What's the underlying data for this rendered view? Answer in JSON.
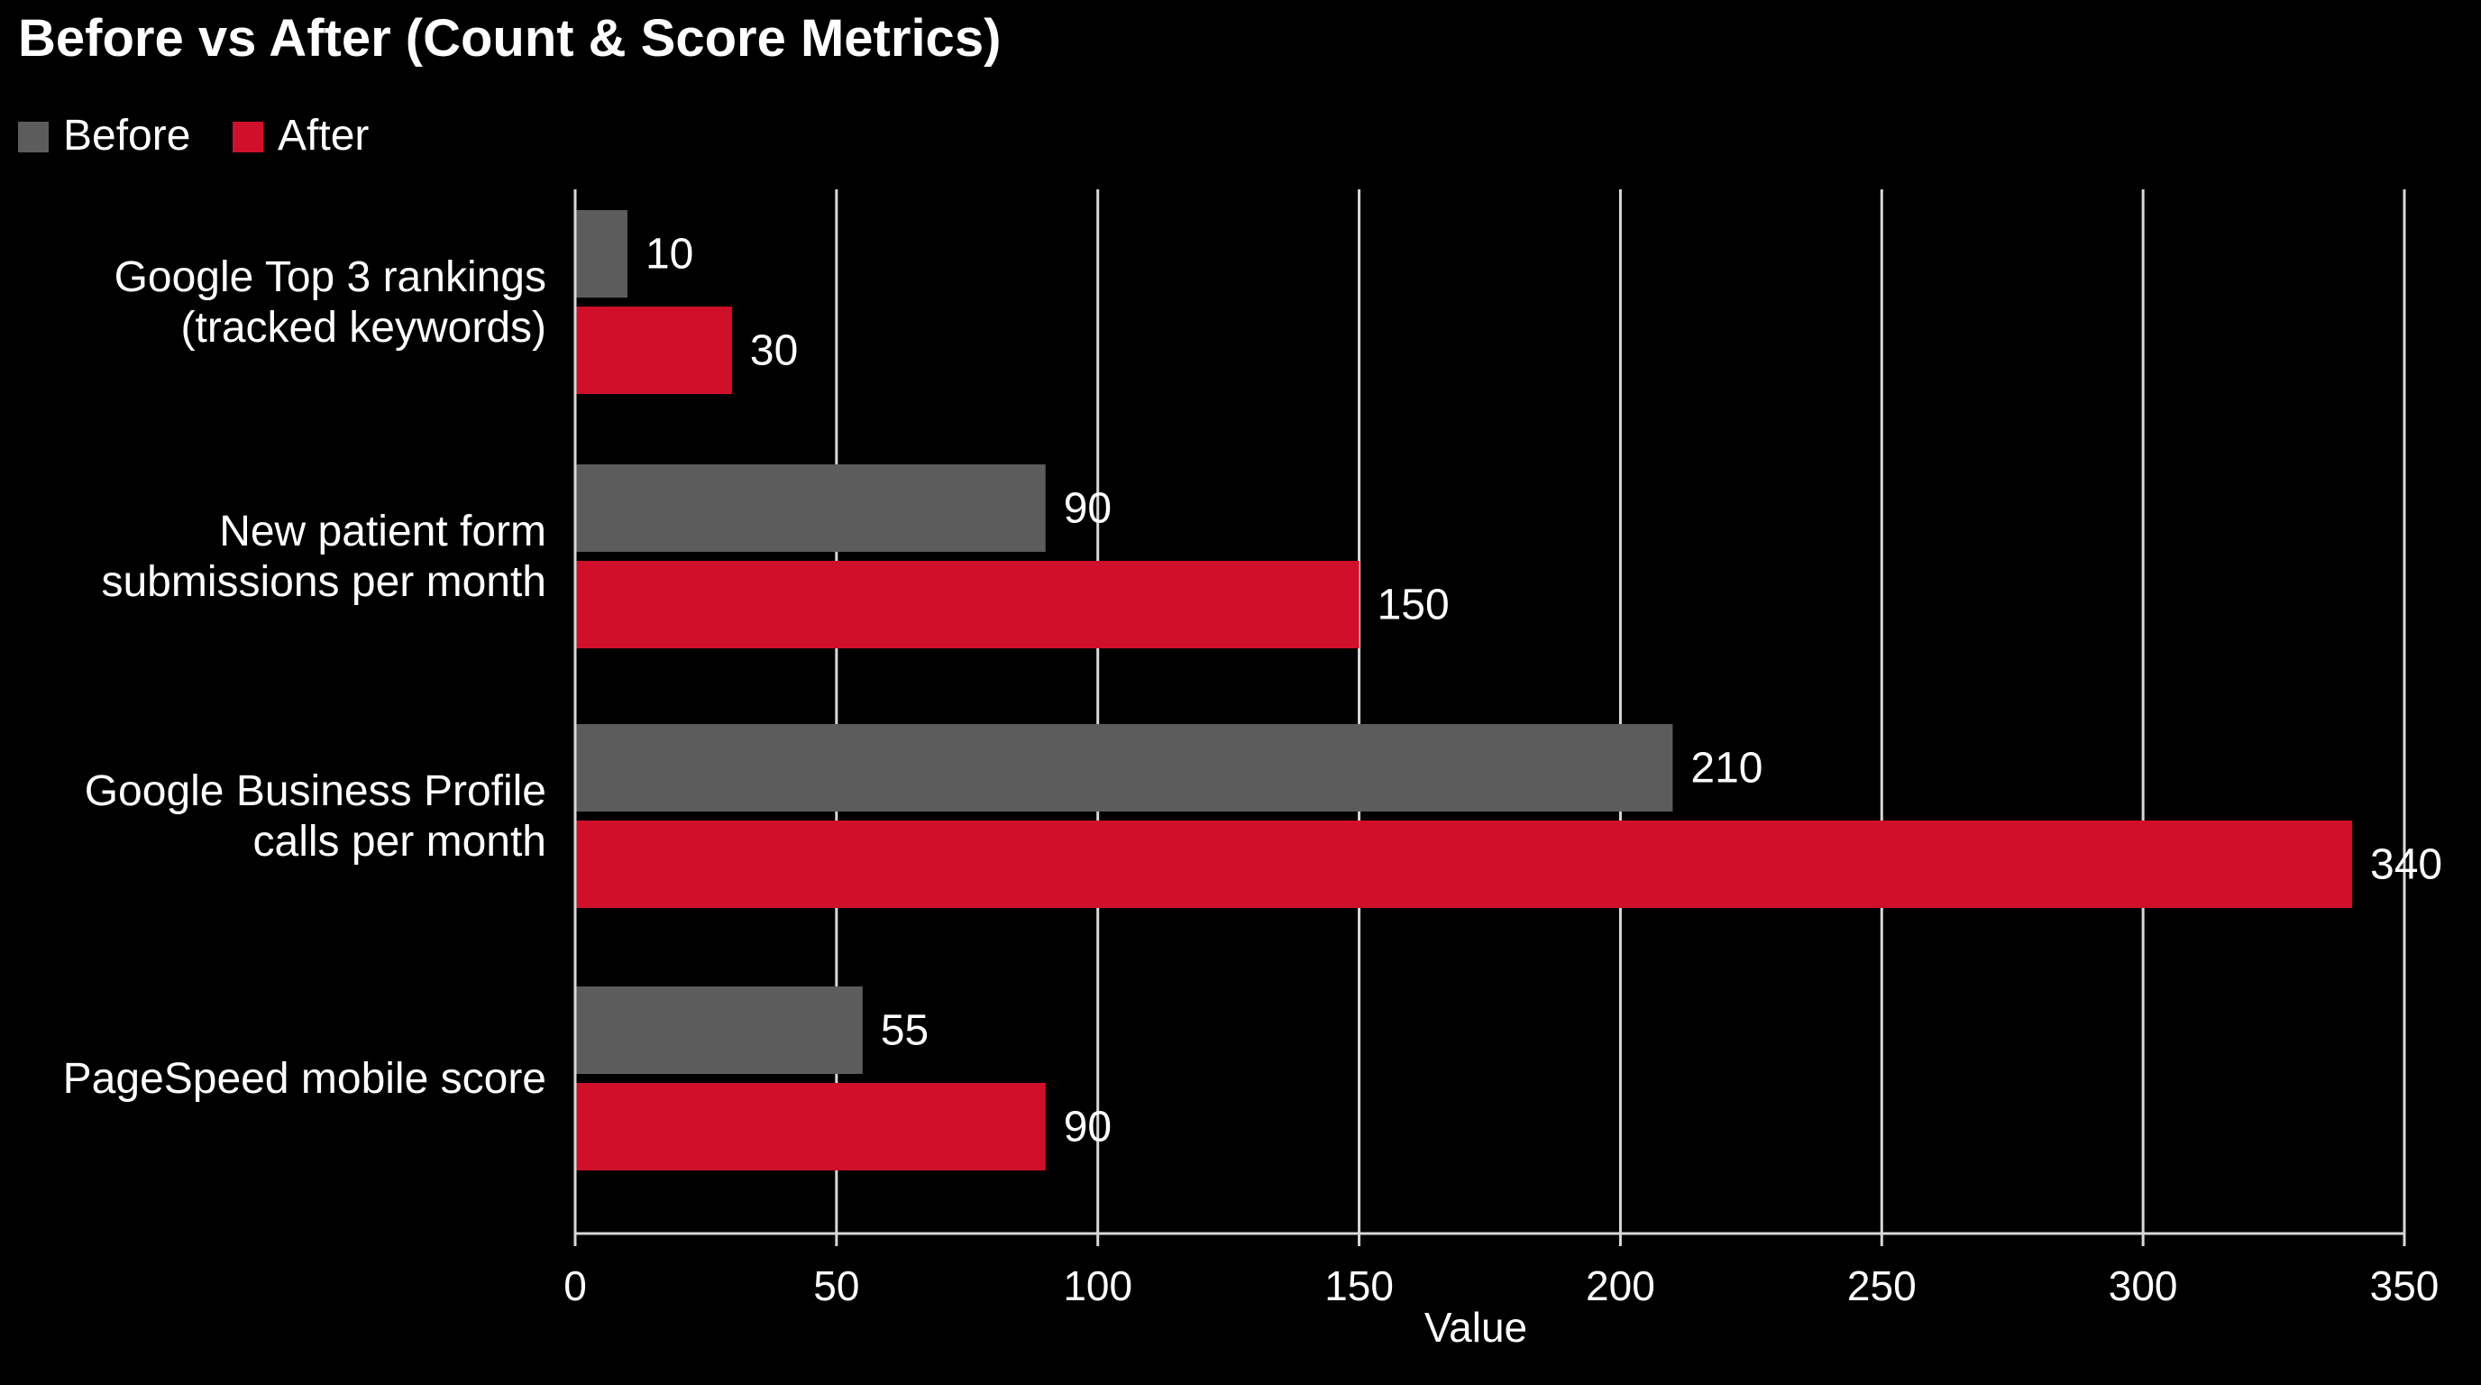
{
  "chart_data": {
    "type": "bar",
    "orientation": "horizontal",
    "title": "Before vs After (Count & Score Metrics)",
    "xlabel": "Value",
    "ylabel": "",
    "xlim": [
      0,
      350
    ],
    "xticks": [
      0,
      50,
      100,
      150,
      200,
      250,
      300,
      350
    ],
    "grid": "vertical",
    "legend_position": "top-left",
    "categories": [
      [
        "Google Top 3 rankings",
        "(tracked keywords)"
      ],
      [
        "New patient form",
        "submissions per month"
      ],
      [
        "Google Business Profile",
        "calls per month"
      ],
      [
        "PageSpeed mobile score"
      ]
    ],
    "series": [
      {
        "name": "Before",
        "color": "#5c5c5c",
        "values": [
          10,
          90,
          210,
          55
        ]
      },
      {
        "name": "After",
        "color": "#d0102a",
        "values": [
          30,
          150,
          340,
          90
        ]
      }
    ],
    "background": "#000000",
    "grid_color": "#d8d8d8"
  }
}
